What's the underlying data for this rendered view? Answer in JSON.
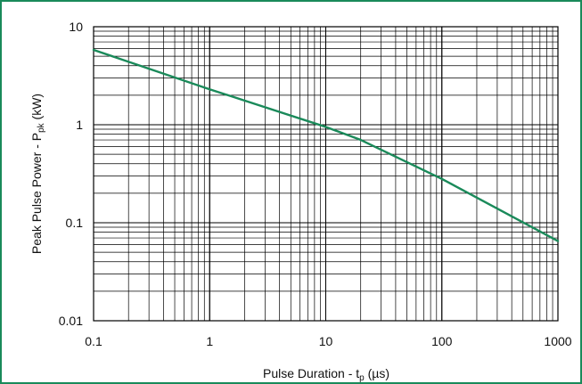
{
  "chart_data": {
    "type": "line",
    "xscale": "log",
    "yscale": "log",
    "xlim": [
      0.1,
      1000
    ],
    "ylim": [
      0.01,
      10
    ],
    "xticks": [
      "0.1",
      "1",
      "10",
      "100",
      "1000"
    ],
    "yticks": [
      "0.01",
      "0.1",
      "1",
      "10"
    ],
    "xlabel": {
      "main": "Pulse Duration - t",
      "sub": "p",
      "unit": " (µs)"
    },
    "ylabel": {
      "main": "Peak Pulse Power - P",
      "sub": "pk",
      "unit": " (kW)"
    },
    "grid": true,
    "series": [
      {
        "color": "#1a8a5a",
        "x": [
          0.1,
          1,
          10,
          20,
          100,
          1000
        ],
        "y": [
          5.8,
          2.3,
          0.95,
          0.7,
          0.28,
          0.065
        ]
      }
    ]
  },
  "colors": {
    "border": "#1a8a5a",
    "grid": "#000000",
    "curve": "#1a8a5a"
  }
}
